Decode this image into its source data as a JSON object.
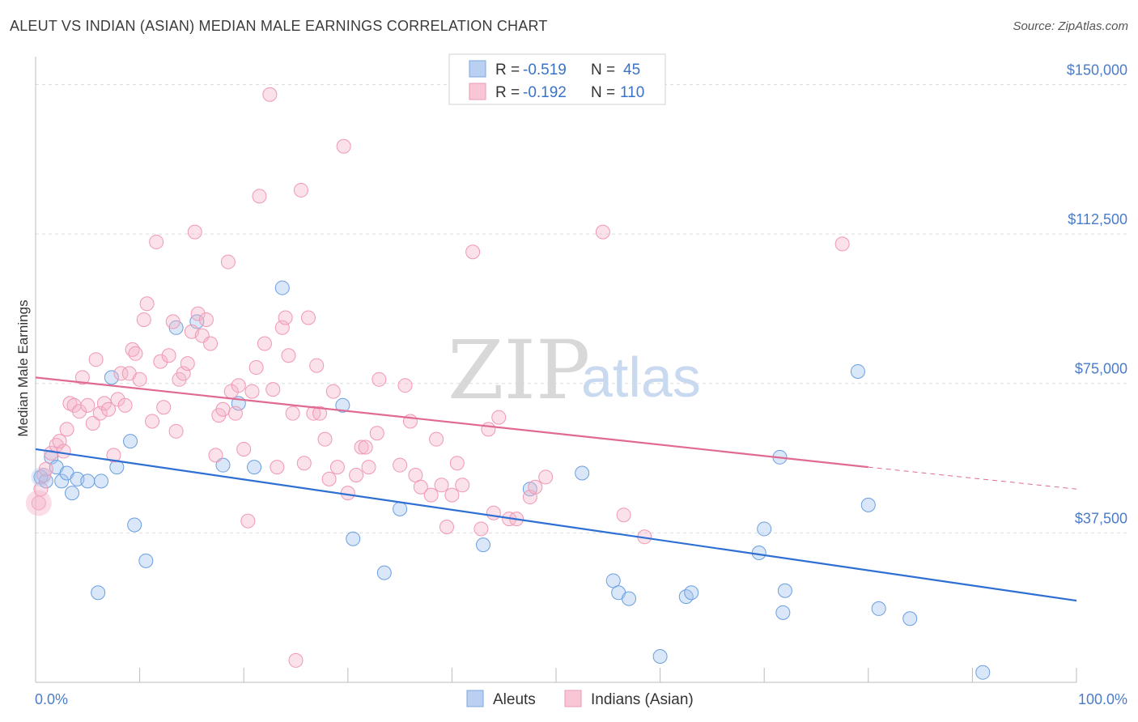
{
  "title": "ALEUT VS INDIAN (ASIAN) MEDIAN MALE EARNINGS CORRELATION CHART",
  "source": "Source: ZipAtlas.com",
  "watermark": {
    "zip": "ZIP",
    "atlas": "atlas"
  },
  "chart_data": {
    "type": "scatter",
    "ylabel": "Median Male Earnings",
    "xlim": [
      0,
      100
    ],
    "ylim": [
      0,
      157000
    ],
    "y_ticks": [
      {
        "value": 37500,
        "label": "$37,500"
      },
      {
        "value": 75000,
        "label": "$75,000"
      },
      {
        "value": 112500,
        "label": "$112,500"
      },
      {
        "value": 150000,
        "label": "$150,000"
      }
    ],
    "x_tick_labels": {
      "min": "0.0%",
      "max": "100.0%"
    },
    "grid": true,
    "legend_placement": "top-center",
    "series": [
      {
        "name": "Aleuts",
        "color": "#6b9fe0",
        "line_color": "#2e6fd4",
        "r_label": "R = ",
        "r_value": "-0.519",
        "n_label": "N = ",
        "n_value": "45",
        "trend": {
          "x0": 0,
          "y0": 58500,
          "x1": 100,
          "y1": 20500
        },
        "points": [
          [
            0.5,
            51500
          ],
          [
            1.0,
            50500
          ],
          [
            1.5,
            56500
          ],
          [
            2.0,
            54000
          ],
          [
            2.5,
            50500
          ],
          [
            3.0,
            52500
          ],
          [
            3.5,
            47500
          ],
          [
            4.0,
            51000
          ],
          [
            5.0,
            50500
          ],
          [
            6.0,
            22500
          ],
          [
            6.3,
            50500
          ],
          [
            7.3,
            76500
          ],
          [
            7.8,
            54000
          ],
          [
            9.1,
            60500
          ],
          [
            9.5,
            39500
          ],
          [
            10.6,
            30500
          ],
          [
            13.5,
            89000
          ],
          [
            15.5,
            90500
          ],
          [
            18.0,
            54500
          ],
          [
            19.5,
            70000
          ],
          [
            21.0,
            54000
          ],
          [
            23.7,
            99000
          ],
          [
            29.5,
            69500
          ],
          [
            30.5,
            36000
          ],
          [
            33.5,
            27500
          ],
          [
            35.0,
            43500
          ],
          [
            43.0,
            34500
          ],
          [
            47.5,
            48500
          ],
          [
            52.5,
            52500
          ],
          [
            55.5,
            25500
          ],
          [
            56.0,
            22500
          ],
          [
            57.0,
            21000
          ],
          [
            60.0,
            6500
          ],
          [
            62.5,
            21500
          ],
          [
            63.0,
            22500
          ],
          [
            69.5,
            32500
          ],
          [
            70.0,
            38500
          ],
          [
            71.5,
            56500
          ],
          [
            71.8,
            17500
          ],
          [
            72.0,
            23000
          ],
          [
            79.0,
            78000
          ],
          [
            80.0,
            44500
          ],
          [
            81.0,
            18500
          ],
          [
            84.0,
            16000
          ],
          [
            91.0,
            2500
          ]
        ]
      },
      {
        "name": "Indians (Asian)",
        "color": "#f098b4",
        "line_color": "#e06a93",
        "r_label": "R = ",
        "r_value": "-0.192",
        "n_label": "N = ",
        "n_value": "110",
        "trend": {
          "x0": 0,
          "y0": 76500,
          "x1": 80,
          "y1": 54000,
          "dash_x1": 100,
          "dash_y1": 48500
        },
        "points": [
          [
            0.3,
            45000
          ],
          [
            0.5,
            48500
          ],
          [
            0.8,
            52000
          ],
          [
            1.0,
            53500
          ],
          [
            1.5,
            57500
          ],
          [
            2.0,
            59500
          ],
          [
            2.3,
            60500
          ],
          [
            2.7,
            58000
          ],
          [
            3.0,
            63500
          ],
          [
            3.3,
            70000
          ],
          [
            3.7,
            69500
          ],
          [
            4.2,
            68000
          ],
          [
            4.5,
            76500
          ],
          [
            5.0,
            69500
          ],
          [
            5.5,
            65000
          ],
          [
            5.8,
            81000
          ],
          [
            6.2,
            67500
          ],
          [
            6.6,
            70000
          ],
          [
            7.0,
            68500
          ],
          [
            7.5,
            57000
          ],
          [
            7.9,
            71000
          ],
          [
            8.2,
            77500
          ],
          [
            8.6,
            69500
          ],
          [
            9.0,
            77500
          ],
          [
            9.3,
            83500
          ],
          [
            9.6,
            82500
          ],
          [
            10.0,
            76000
          ],
          [
            10.4,
            91000
          ],
          [
            10.7,
            95000
          ],
          [
            11.2,
            65500
          ],
          [
            11.6,
            110500
          ],
          [
            12.0,
            80500
          ],
          [
            12.3,
            69000
          ],
          [
            12.8,
            82000
          ],
          [
            13.2,
            90500
          ],
          [
            13.5,
            63000
          ],
          [
            13.8,
            76000
          ],
          [
            14.2,
            77500
          ],
          [
            14.6,
            80000
          ],
          [
            15.0,
            88000
          ],
          [
            15.3,
            113000
          ],
          [
            15.6,
            92500
          ],
          [
            16.0,
            87000
          ],
          [
            16.4,
            91000
          ],
          [
            16.8,
            85000
          ],
          [
            17.3,
            57000
          ],
          [
            17.6,
            67000
          ],
          [
            18.0,
            68500
          ],
          [
            18.5,
            105500
          ],
          [
            18.8,
            73000
          ],
          [
            19.2,
            67500
          ],
          [
            19.5,
            74500
          ],
          [
            20.0,
            58500
          ],
          [
            20.4,
            40500
          ],
          [
            20.8,
            73000
          ],
          [
            21.2,
            79000
          ],
          [
            21.5,
            122000
          ],
          [
            22.0,
            85000
          ],
          [
            22.5,
            147500
          ],
          [
            22.8,
            73500
          ],
          [
            23.2,
            54000
          ],
          [
            23.7,
            89000
          ],
          [
            24.0,
            91500
          ],
          [
            24.3,
            82000
          ],
          [
            24.7,
            67500
          ],
          [
            25.0,
            5500
          ],
          [
            25.5,
            123500
          ],
          [
            25.8,
            55000
          ],
          [
            26.2,
            91500
          ],
          [
            26.7,
            67500
          ],
          [
            27.0,
            79500
          ],
          [
            27.3,
            67500
          ],
          [
            27.8,
            61000
          ],
          [
            28.2,
            51000
          ],
          [
            28.6,
            73000
          ],
          [
            29.0,
            54000
          ],
          [
            29.6,
            134500
          ],
          [
            30.0,
            47500
          ],
          [
            30.8,
            52000
          ],
          [
            31.3,
            59000
          ],
          [
            31.7,
            59000
          ],
          [
            32.0,
            54000
          ],
          [
            32.8,
            62500
          ],
          [
            33.0,
            76000
          ],
          [
            35.0,
            54500
          ],
          [
            35.5,
            74500
          ],
          [
            36.0,
            65500
          ],
          [
            36.5,
            52000
          ],
          [
            37.0,
            49000
          ],
          [
            38.0,
            47000
          ],
          [
            38.5,
            61000
          ],
          [
            39.0,
            49500
          ],
          [
            39.5,
            39000
          ],
          [
            40.0,
            47000
          ],
          [
            40.5,
            55000
          ],
          [
            41.0,
            49500
          ],
          [
            42.0,
            108000
          ],
          [
            42.8,
            38500
          ],
          [
            43.5,
            63500
          ],
          [
            44.0,
            42500
          ],
          [
            44.5,
            66500
          ],
          [
            45.5,
            41000
          ],
          [
            46.2,
            41000
          ],
          [
            47.5,
            46500
          ],
          [
            48.0,
            49000
          ],
          [
            49.0,
            51500
          ],
          [
            54.5,
            113000
          ],
          [
            56.5,
            42000
          ],
          [
            58.5,
            36500
          ],
          [
            77.5,
            110000
          ]
        ]
      }
    ]
  }
}
